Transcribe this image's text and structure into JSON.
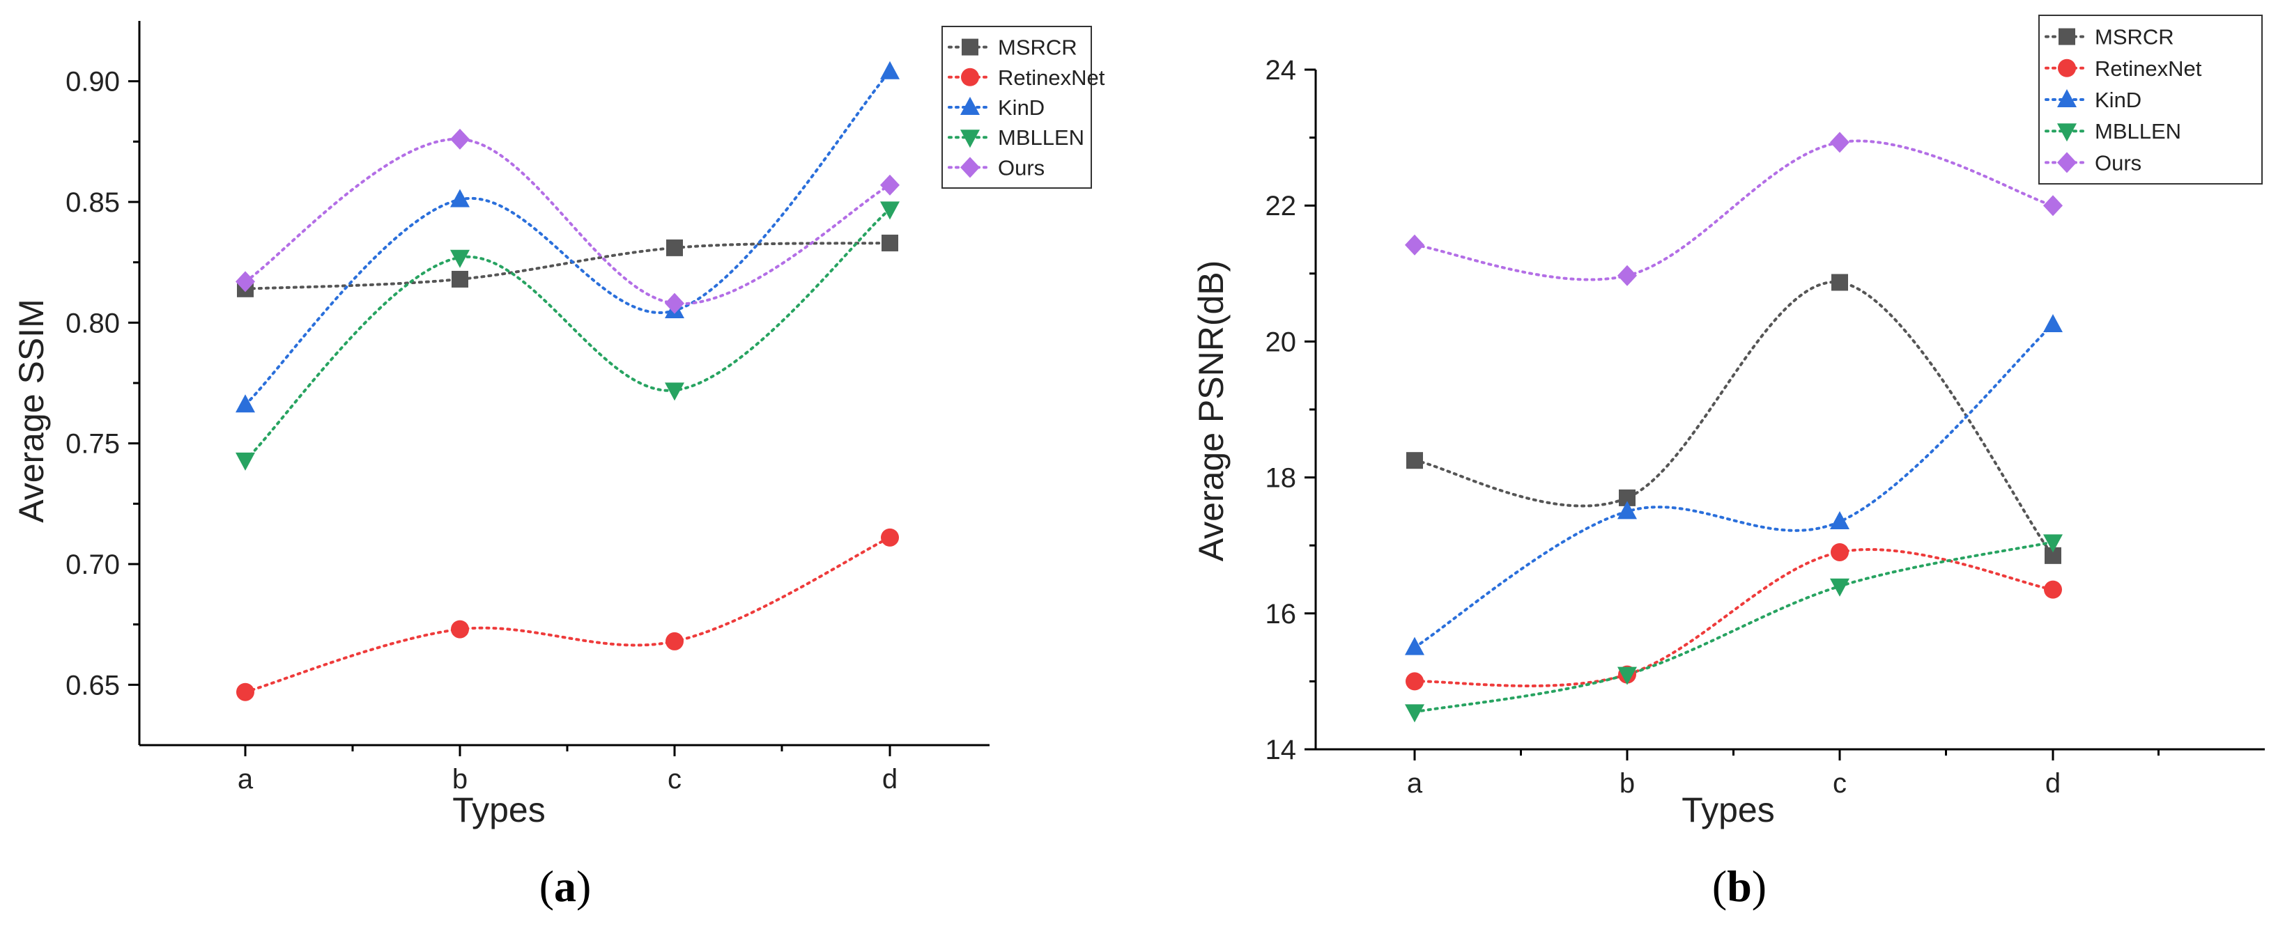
{
  "chart_data": [
    {
      "type": "line",
      "panel_label": "a",
      "categories": [
        "a",
        "b",
        "c",
        "d"
      ],
      "xlabel": "Types",
      "ylabel": "Average SSIM",
      "ylim": [
        0.625,
        0.925
      ],
      "yticks": [
        0.65,
        0.7,
        0.75,
        0.8,
        0.85,
        0.9
      ],
      "ytick_labels": [
        "0.65",
        "0.70",
        "0.75",
        "0.80",
        "0.85",
        "0.90"
      ],
      "series": [
        {
          "name": "MSRCR",
          "color": "#555555",
          "marker": "square",
          "values": [
            0.814,
            0.818,
            0.831,
            0.833
          ]
        },
        {
          "name": "RetinexNet",
          "color": "#ee3b3b",
          "marker": "circle",
          "values": [
            0.647,
            0.673,
            0.668,
            0.711
          ]
        },
        {
          "name": "KinD",
          "color": "#2a6fdb",
          "marker": "triangle-up",
          "values": [
            0.766,
            0.851,
            0.805,
            0.904
          ]
        },
        {
          "name": "MBLLEN",
          "color": "#27a361",
          "marker": "triangle-down",
          "values": [
            0.743,
            0.827,
            0.772,
            0.847
          ]
        },
        {
          "name": "Ours",
          "color": "#b36ee6",
          "marker": "diamond",
          "values": [
            0.817,
            0.876,
            0.808,
            0.857
          ]
        }
      ]
    },
    {
      "type": "line",
      "panel_label": "b",
      "categories": [
        "a",
        "b",
        "c",
        "d"
      ],
      "xlabel": "Types",
      "ylabel": "Average PSNR(dB)",
      "ylim": [
        14,
        24
      ],
      "yticks": [
        14,
        16,
        18,
        20,
        22,
        24
      ],
      "ytick_labels": [
        "14",
        "16",
        "18",
        "20",
        "22",
        "24"
      ],
      "series": [
        {
          "name": "MSRCR",
          "color": "#555555",
          "marker": "square",
          "values": [
            18.25,
            17.7,
            20.87,
            16.85
          ]
        },
        {
          "name": "RetinexNet",
          "color": "#ee3b3b",
          "marker": "circle",
          "values": [
            15.0,
            15.1,
            16.9,
            16.35
          ]
        },
        {
          "name": "KinD",
          "color": "#2a6fdb",
          "marker": "triangle-up",
          "values": [
            15.5,
            17.5,
            17.35,
            20.25
          ]
        },
        {
          "name": "MBLLEN",
          "color": "#27a361",
          "marker": "triangle-down",
          "values": [
            14.55,
            15.1,
            16.4,
            17.05
          ]
        },
        {
          "name": "Ours",
          "color": "#b36ee6",
          "marker": "diamond",
          "values": [
            21.42,
            20.97,
            22.93,
            22.0
          ]
        }
      ]
    }
  ]
}
